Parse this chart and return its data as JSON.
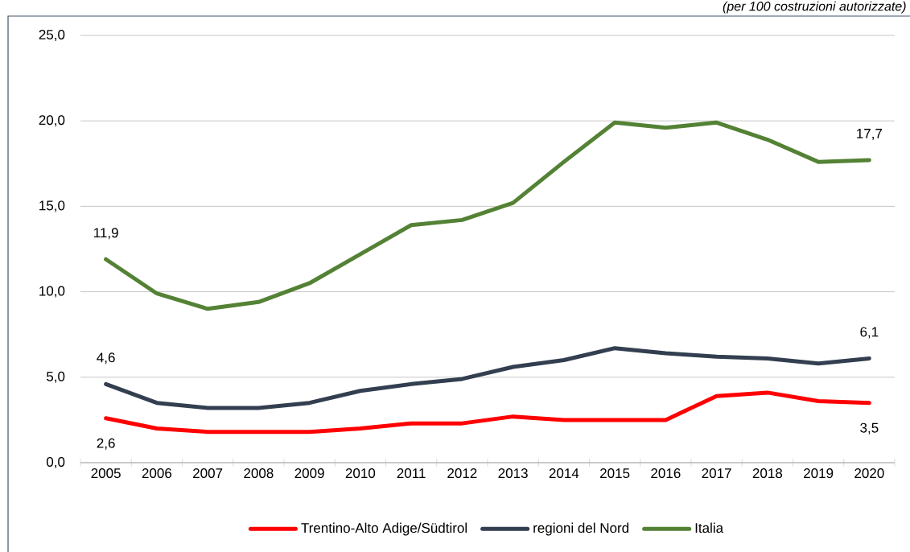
{
  "chart_data": {
    "type": "line",
    "subtitle": "(per 100 costruzioni autorizzate)",
    "categories": [
      "2005",
      "2006",
      "2007",
      "2008",
      "2009",
      "2010",
      "2011",
      "2012",
      "2013",
      "2014",
      "2015",
      "2016",
      "2017",
      "2018",
      "2019",
      "2020"
    ],
    "series": [
      {
        "name": "Trentino-Alto Adige/Südtirol",
        "color": "#ff0000",
        "values": [
          2.6,
          2.0,
          1.8,
          1.8,
          1.8,
          2.0,
          2.3,
          2.3,
          2.7,
          2.5,
          2.5,
          2.5,
          3.9,
          4.1,
          3.6,
          3.5
        ],
        "value_labels": [
          "2,6",
          null,
          null,
          null,
          null,
          null,
          null,
          null,
          null,
          null,
          null,
          null,
          null,
          null,
          null,
          "3,5"
        ]
      },
      {
        "name": "regioni del Nord",
        "color": "#333f50",
        "values": [
          4.6,
          3.5,
          3.2,
          3.2,
          3.5,
          4.2,
          4.6,
          4.9,
          5.6,
          6.0,
          6.7,
          6.4,
          6.2,
          6.1,
          5.8,
          6.1
        ],
        "value_labels": [
          "4,6",
          null,
          null,
          null,
          null,
          null,
          null,
          null,
          null,
          null,
          null,
          null,
          null,
          null,
          null,
          "6,1"
        ]
      },
      {
        "name": "Italia",
        "color": "#548235",
        "values": [
          11.9,
          9.9,
          9.0,
          9.4,
          10.5,
          12.2,
          13.9,
          14.2,
          15.2,
          17.6,
          19.9,
          19.6,
          19.9,
          18.9,
          17.6,
          17.7
        ],
        "value_labels": [
          "11,9",
          null,
          null,
          null,
          null,
          null,
          null,
          null,
          null,
          null,
          null,
          null,
          null,
          null,
          null,
          "17,7"
        ]
      }
    ],
    "ylim": [
      0,
      25
    ],
    "yticks": [
      {
        "value": 0,
        "label": "0,0"
      },
      {
        "value": 5,
        "label": "5,0"
      },
      {
        "value": 10,
        "label": "10,0"
      },
      {
        "value": 15,
        "label": "15,0"
      },
      {
        "value": 20,
        "label": "20,0"
      },
      {
        "value": 25,
        "label": "25,0"
      }
    ],
    "grid": "y",
    "legend": "bottom"
  }
}
